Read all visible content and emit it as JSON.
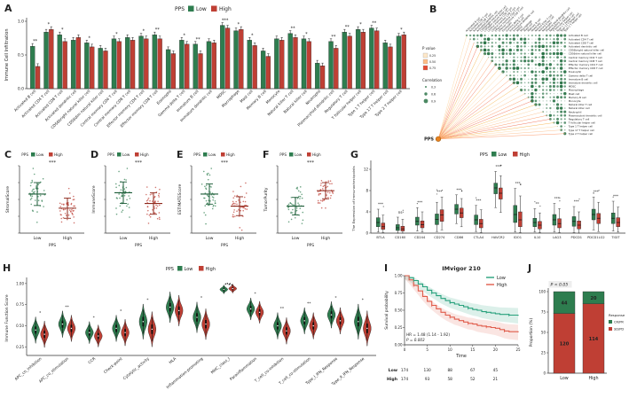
{
  "colors": {
    "low": "#2e7d4f",
    "high": "#bf3f34",
    "low_dark": "#1d5c38",
    "high_dark": "#8f2a1e",
    "km_low": "#27a17c",
    "km_high": "#e05c4b",
    "dot_green": "#1e6b3c",
    "pps_node": "#e8821e",
    "warm_lines": [
      "#fdd49e",
      "#fdbb84",
      "#fc8d59",
      "#ef6548",
      "#f5b041"
    ],
    "pvalue_swatches": [
      "#fee8c8",
      "#fdbb84",
      "#e34a33"
    ]
  },
  "chart_data": [
    {
      "id": "A",
      "label": "A",
      "type": "bar",
      "legend_title": "PPS",
      "groups": [
        "Low",
        "High"
      ],
      "ylabel": "Immune Cell Infiltration",
      "yticks": [
        0,
        0.5,
        1.0
      ],
      "ylim": [
        0,
        1.0
      ],
      "categories": [
        "Activated B cell",
        "Activated CD4 T cell",
        "Activated CD8 T cell",
        "Activated dendritic cell",
        "CD56bright natural killer cell",
        "CD56dim natural killer cell",
        "Central memory CD4 T cell",
        "Central memory CD8 T cell",
        "Effector memory CD4 T cell",
        "Effector memory CD8 T cell",
        "Eosinophil",
        "Gamma delta T cell",
        "Immature B cell",
        "Immature dendritic cell",
        "MDSC",
        "Macrophage",
        "Mast cell",
        "Memory B cell",
        "Monocyte",
        "Natural killer T cell",
        "Natural killer cell",
        "Neutrophil",
        "Plasmacytoid dendritic cell",
        "Regulatory T cell",
        "T follicular helper cell",
        "Type 1 T helper cell",
        "Type 17 T helper cell",
        "Type 2 T helper cell"
      ],
      "series": [
        {
          "name": "Low",
          "values": [
            0.63,
            0.84,
            0.8,
            0.72,
            0.68,
            0.6,
            0.74,
            0.76,
            0.78,
            0.8,
            0.58,
            0.72,
            0.66,
            0.7,
            0.94,
            0.86,
            0.72,
            0.56,
            0.74,
            0.82,
            0.74,
            0.38,
            0.7,
            0.84,
            0.88,
            0.9,
            0.68,
            0.78
          ]
        },
        {
          "name": "High",
          "values": [
            0.33,
            0.88,
            0.7,
            0.76,
            0.62,
            0.56,
            0.7,
            0.72,
            0.74,
            0.74,
            0.52,
            0.66,
            0.52,
            0.68,
            0.9,
            0.88,
            0.64,
            0.48,
            0.72,
            0.76,
            0.7,
            0.34,
            0.6,
            0.78,
            0.84,
            0.86,
            0.62,
            0.8
          ]
        }
      ],
      "sig": [
        "**",
        "*",
        "*",
        "",
        "*",
        "",
        "*",
        "",
        "*",
        "**",
        "",
        "*",
        "**",
        "",
        "***",
        "*",
        "*",
        "",
        "",
        "**",
        "*",
        "",
        "**",
        "**",
        "*",
        "**",
        "",
        "*"
      ]
    },
    {
      "id": "B",
      "label": "B",
      "type": "heatmap",
      "node": "PPS",
      "labels": [
        "Activated B cell",
        "Activated CD4 T cell",
        "Activated CD8 T cell",
        "Activated dendritic cell",
        "CD56bright natural killer cell",
        "CD56dim natural killer cell",
        "Central memory CD4 T cell",
        "Central memory CD8 T cell",
        "Effector memory CD4 T cell",
        "Effector memory CD8 T cell",
        "Eosinophil",
        "Gamma delta T cell",
        "Immature B cell",
        "Immature dendritic cell",
        "MDSC",
        "Macrophage",
        "Mast cell",
        "Memory B cell",
        "Monocyte",
        "Natural killer T cell",
        "Natural killer cell",
        "Neutrophil",
        "Plasmacytoid dendritic cell",
        "Regulatory T cell",
        "T follicular helper cell",
        "Type 1 T helper cell",
        "Type 17 T helper cell",
        "Type 2 T helper cell"
      ],
      "legend_p": {
        "title": "P value",
        "ticks": [
          "0.25",
          "0.50",
          "0.75"
        ]
      },
      "legend_r": {
        "title": "Correlation",
        "ticks": [
          "0.3",
          "0.6",
          "0.9"
        ]
      }
    },
    {
      "id": "C",
      "label": "C",
      "type": "scatter",
      "legend_title": "PPS",
      "groups": [
        "Low",
        "High"
      ],
      "ylabel": "StromalScore",
      "xlabel": "PPS",
      "xticks": [
        "Low",
        "High"
      ],
      "sig": "***",
      "low_mean": 0.58,
      "low_sd": 0.17,
      "high_mean": 0.37,
      "high_sd": 0.15
    },
    {
      "id": "D",
      "label": "D",
      "type": "scatter",
      "legend_title": "PPS",
      "groups": [
        "Low",
        "High"
      ],
      "ylabel": "ImmuneScore",
      "xlabel": "PPS",
      "xticks": [
        "Low",
        "High"
      ],
      "sig": "***",
      "low_mean": 0.6,
      "low_sd": 0.16,
      "high_mean": 0.44,
      "high_sd": 0.16
    },
    {
      "id": "E",
      "label": "E",
      "type": "scatter",
      "legend_title": "PPS",
      "groups": [
        "Low",
        "High"
      ],
      "ylabel": "ESTIMATEScore",
      "xlabel": "PPS",
      "xticks": [
        "Low",
        "High"
      ],
      "sig": "***",
      "low_mean": 0.58,
      "low_sd": 0.15,
      "high_mean": 0.4,
      "high_sd": 0.14
    },
    {
      "id": "F",
      "label": "F",
      "type": "scatter",
      "legend_title": "PPS",
      "groups": [
        "Low",
        "High"
      ],
      "ylabel": "TumorPurity",
      "xlabel": "PPS",
      "xticks": [
        "Low",
        "High"
      ],
      "sig": "***",
      "low_mean": 0.4,
      "low_sd": 0.13,
      "high_mean": 0.63,
      "high_sd": 0.12
    },
    {
      "id": "G",
      "label": "G",
      "type": "box",
      "legend_title": "PPS",
      "groups": [
        "Low",
        "High"
      ],
      "ylabel": "The Expression of Immunocheckpoints",
      "ylim": [
        0,
        13
      ],
      "yticks": [
        0,
        4,
        8,
        12
      ],
      "genes": [
        "BTLA",
        "CD160",
        "CD244",
        "CD274",
        "CD86",
        "CTLA4",
        "HAVCR2",
        "IDO1",
        "IL10",
        "LAG3",
        "PDCD1",
        "PDCD1LG2",
        "TIGIT"
      ],
      "sig": [
        "***",
        "ns",
        "***",
        "***",
        "***",
        "***",
        "***",
        "***",
        "**",
        "***",
        "***",
        "***",
        "***"
      ],
      "low": [
        [
          0.2,
          1.2,
          2.0,
          2.9,
          4.5
        ],
        [
          0.0,
          0.5,
          1.0,
          1.6,
          3.0
        ],
        [
          0.4,
          1.5,
          2.2,
          3.0,
          4.8
        ],
        [
          0.3,
          1.6,
          2.6,
          3.6,
          5.8
        ],
        [
          1.8,
          3.6,
          4.5,
          5.4,
          7.2
        ],
        [
          0.3,
          1.6,
          2.5,
          3.4,
          5.2
        ],
        [
          4.8,
          7.4,
          8.5,
          9.4,
          11.6
        ],
        [
          0.2,
          2.0,
          3.5,
          5.2,
          8.4
        ],
        [
          0.2,
          1.2,
          2.0,
          2.8,
          4.6
        ],
        [
          0.2,
          1.5,
          2.5,
          3.5,
          5.6
        ],
        [
          0.1,
          1.3,
          2.2,
          3.1,
          5.0
        ],
        [
          0.6,
          2.5,
          3.5,
          4.5,
          6.8
        ],
        [
          0.4,
          1.8,
          2.8,
          3.8,
          6.0
        ]
      ],
      "high": [
        [
          0.1,
          0.7,
          1.2,
          1.9,
          3.4
        ],
        [
          0.0,
          0.4,
          0.8,
          1.3,
          2.6
        ],
        [
          0.2,
          1.0,
          1.6,
          2.3,
          4.0
        ],
        [
          0.6,
          2.2,
          3.4,
          4.4,
          6.8
        ],
        [
          1.2,
          2.9,
          3.8,
          4.7,
          6.5
        ],
        [
          0.1,
          1.0,
          1.8,
          2.6,
          4.4
        ],
        [
          3.9,
          6.4,
          7.5,
          8.5,
          10.8
        ],
        [
          0.1,
          1.2,
          2.5,
          4.0,
          7.0
        ],
        [
          0.1,
          0.8,
          1.5,
          2.2,
          3.8
        ],
        [
          0.1,
          1.0,
          1.8,
          2.7,
          4.6
        ],
        [
          0.0,
          0.8,
          1.5,
          2.3,
          4.0
        ],
        [
          0.3,
          1.8,
          2.8,
          3.7,
          5.8
        ],
        [
          0.2,
          1.2,
          2.0,
          2.9,
          4.9
        ]
      ]
    },
    {
      "id": "H",
      "label": "H",
      "type": "violin",
      "legend_title": "PPS",
      "groups": [
        "Low",
        "High"
      ],
      "ylabel": "Immune Function Score",
      "yticks": [
        "0.25",
        "0.50",
        "0.75",
        "1.00"
      ],
      "categories": [
        "APC_co_inhibition",
        "APC_co_stimulation",
        "CCR",
        "Check-point",
        "Cytolytic_activity",
        "HLA",
        "Inflammation-promoting",
        "MHC_class_I",
        "Parainflammation",
        "T_cell_co-inhibition",
        "T_cell_co-stimulation",
        "Type_I_IFN_Response",
        "Type_II_IFN_Response"
      ],
      "low_mean": [
        0.45,
        0.52,
        0.42,
        0.47,
        0.55,
        0.72,
        0.6,
        0.93,
        0.7,
        0.5,
        0.56,
        0.63,
        0.55
      ],
      "high_mean": [
        0.4,
        0.47,
        0.38,
        0.42,
        0.46,
        0.68,
        0.52,
        0.94,
        0.66,
        0.44,
        0.5,
        0.56,
        0.47
      ],
      "sd": [
        0.06,
        0.06,
        0.05,
        0.06,
        0.08,
        0.07,
        0.07,
        0.02,
        0.05,
        0.06,
        0.06,
        0.06,
        0.08
      ],
      "sig": [
        "*",
        "**",
        "*",
        "*",
        "*",
        "",
        "*",
        "",
        "*",
        "**",
        "**",
        "*",
        "*"
      ]
    },
    {
      "id": "I",
      "label": "I",
      "type": "line",
      "subtype": "kaplan-meier",
      "title": "IMvigor 210",
      "groups": [
        "Low",
        "High"
      ],
      "ylabel": "Survival probability",
      "xlabel": "Time",
      "xticks": [
        0,
        5,
        10,
        15,
        20,
        25
      ],
      "yticks": [
        "0.00",
        "0.25",
        "0.50",
        "0.75",
        "1.00"
      ],
      "hr_text": "HR = 1.48 (1.14 - 1.92)",
      "p_text": "P = 0.003",
      "low_curve": [
        [
          0,
          1
        ],
        [
          1,
          0.97
        ],
        [
          2,
          0.93
        ],
        [
          3,
          0.88
        ],
        [
          4,
          0.84
        ],
        [
          5,
          0.79
        ],
        [
          6,
          0.75
        ],
        [
          7,
          0.71
        ],
        [
          8,
          0.67
        ],
        [
          9,
          0.64
        ],
        [
          10,
          0.61
        ],
        [
          11,
          0.59
        ],
        [
          12,
          0.57
        ],
        [
          13,
          0.55
        ],
        [
          14,
          0.53
        ],
        [
          15,
          0.51
        ],
        [
          16,
          0.5
        ],
        [
          17,
          0.48
        ],
        [
          18,
          0.47
        ],
        [
          19,
          0.46
        ],
        [
          20,
          0.45
        ],
        [
          21,
          0.44
        ],
        [
          23,
          0.43
        ],
        [
          25,
          0.42
        ]
      ],
      "high_curve": [
        [
          0,
          1
        ],
        [
          1,
          0.94
        ],
        [
          2,
          0.86
        ],
        [
          3,
          0.78
        ],
        [
          4,
          0.7
        ],
        [
          5,
          0.63
        ],
        [
          6,
          0.57
        ],
        [
          7,
          0.52
        ],
        [
          8,
          0.47
        ],
        [
          9,
          0.43
        ],
        [
          10,
          0.4
        ],
        [
          11,
          0.37
        ],
        [
          12,
          0.35
        ],
        [
          13,
          0.33
        ],
        [
          14,
          0.31
        ],
        [
          15,
          0.3
        ],
        [
          16,
          0.28
        ],
        [
          17,
          0.27
        ],
        [
          18,
          0.26
        ],
        [
          19,
          0.25
        ],
        [
          20,
          0.24
        ],
        [
          21,
          0.22
        ],
        [
          22,
          0.2
        ],
        [
          23,
          0.19
        ],
        [
          25,
          0.18
        ]
      ],
      "risk": {
        "times": [
          0,
          5,
          10,
          15,
          20
        ],
        "rows": [
          {
            "label": "Low",
            "color": "low",
            "values": [
              174,
              130,
              88,
              67,
              45
            ]
          },
          {
            "label": "High",
            "color": "high",
            "values": [
              174,
              93,
              58,
              52,
              21
            ]
          }
        ]
      }
    },
    {
      "id": "J",
      "label": "J",
      "type": "bar",
      "subtype": "stacked",
      "p_text": "P < 0.05",
      "legend_title": "Response",
      "segments": [
        "CR/PR",
        "SD/PD"
      ],
      "groups": [
        "Low",
        "High"
      ],
      "counts": [
        [
          44,
          120
        ],
        [
          20,
          114
        ]
      ],
      "ylabel": "Proportion (%)",
      "yticks": [
        0,
        25,
        50,
        75,
        100
      ]
    }
  ]
}
